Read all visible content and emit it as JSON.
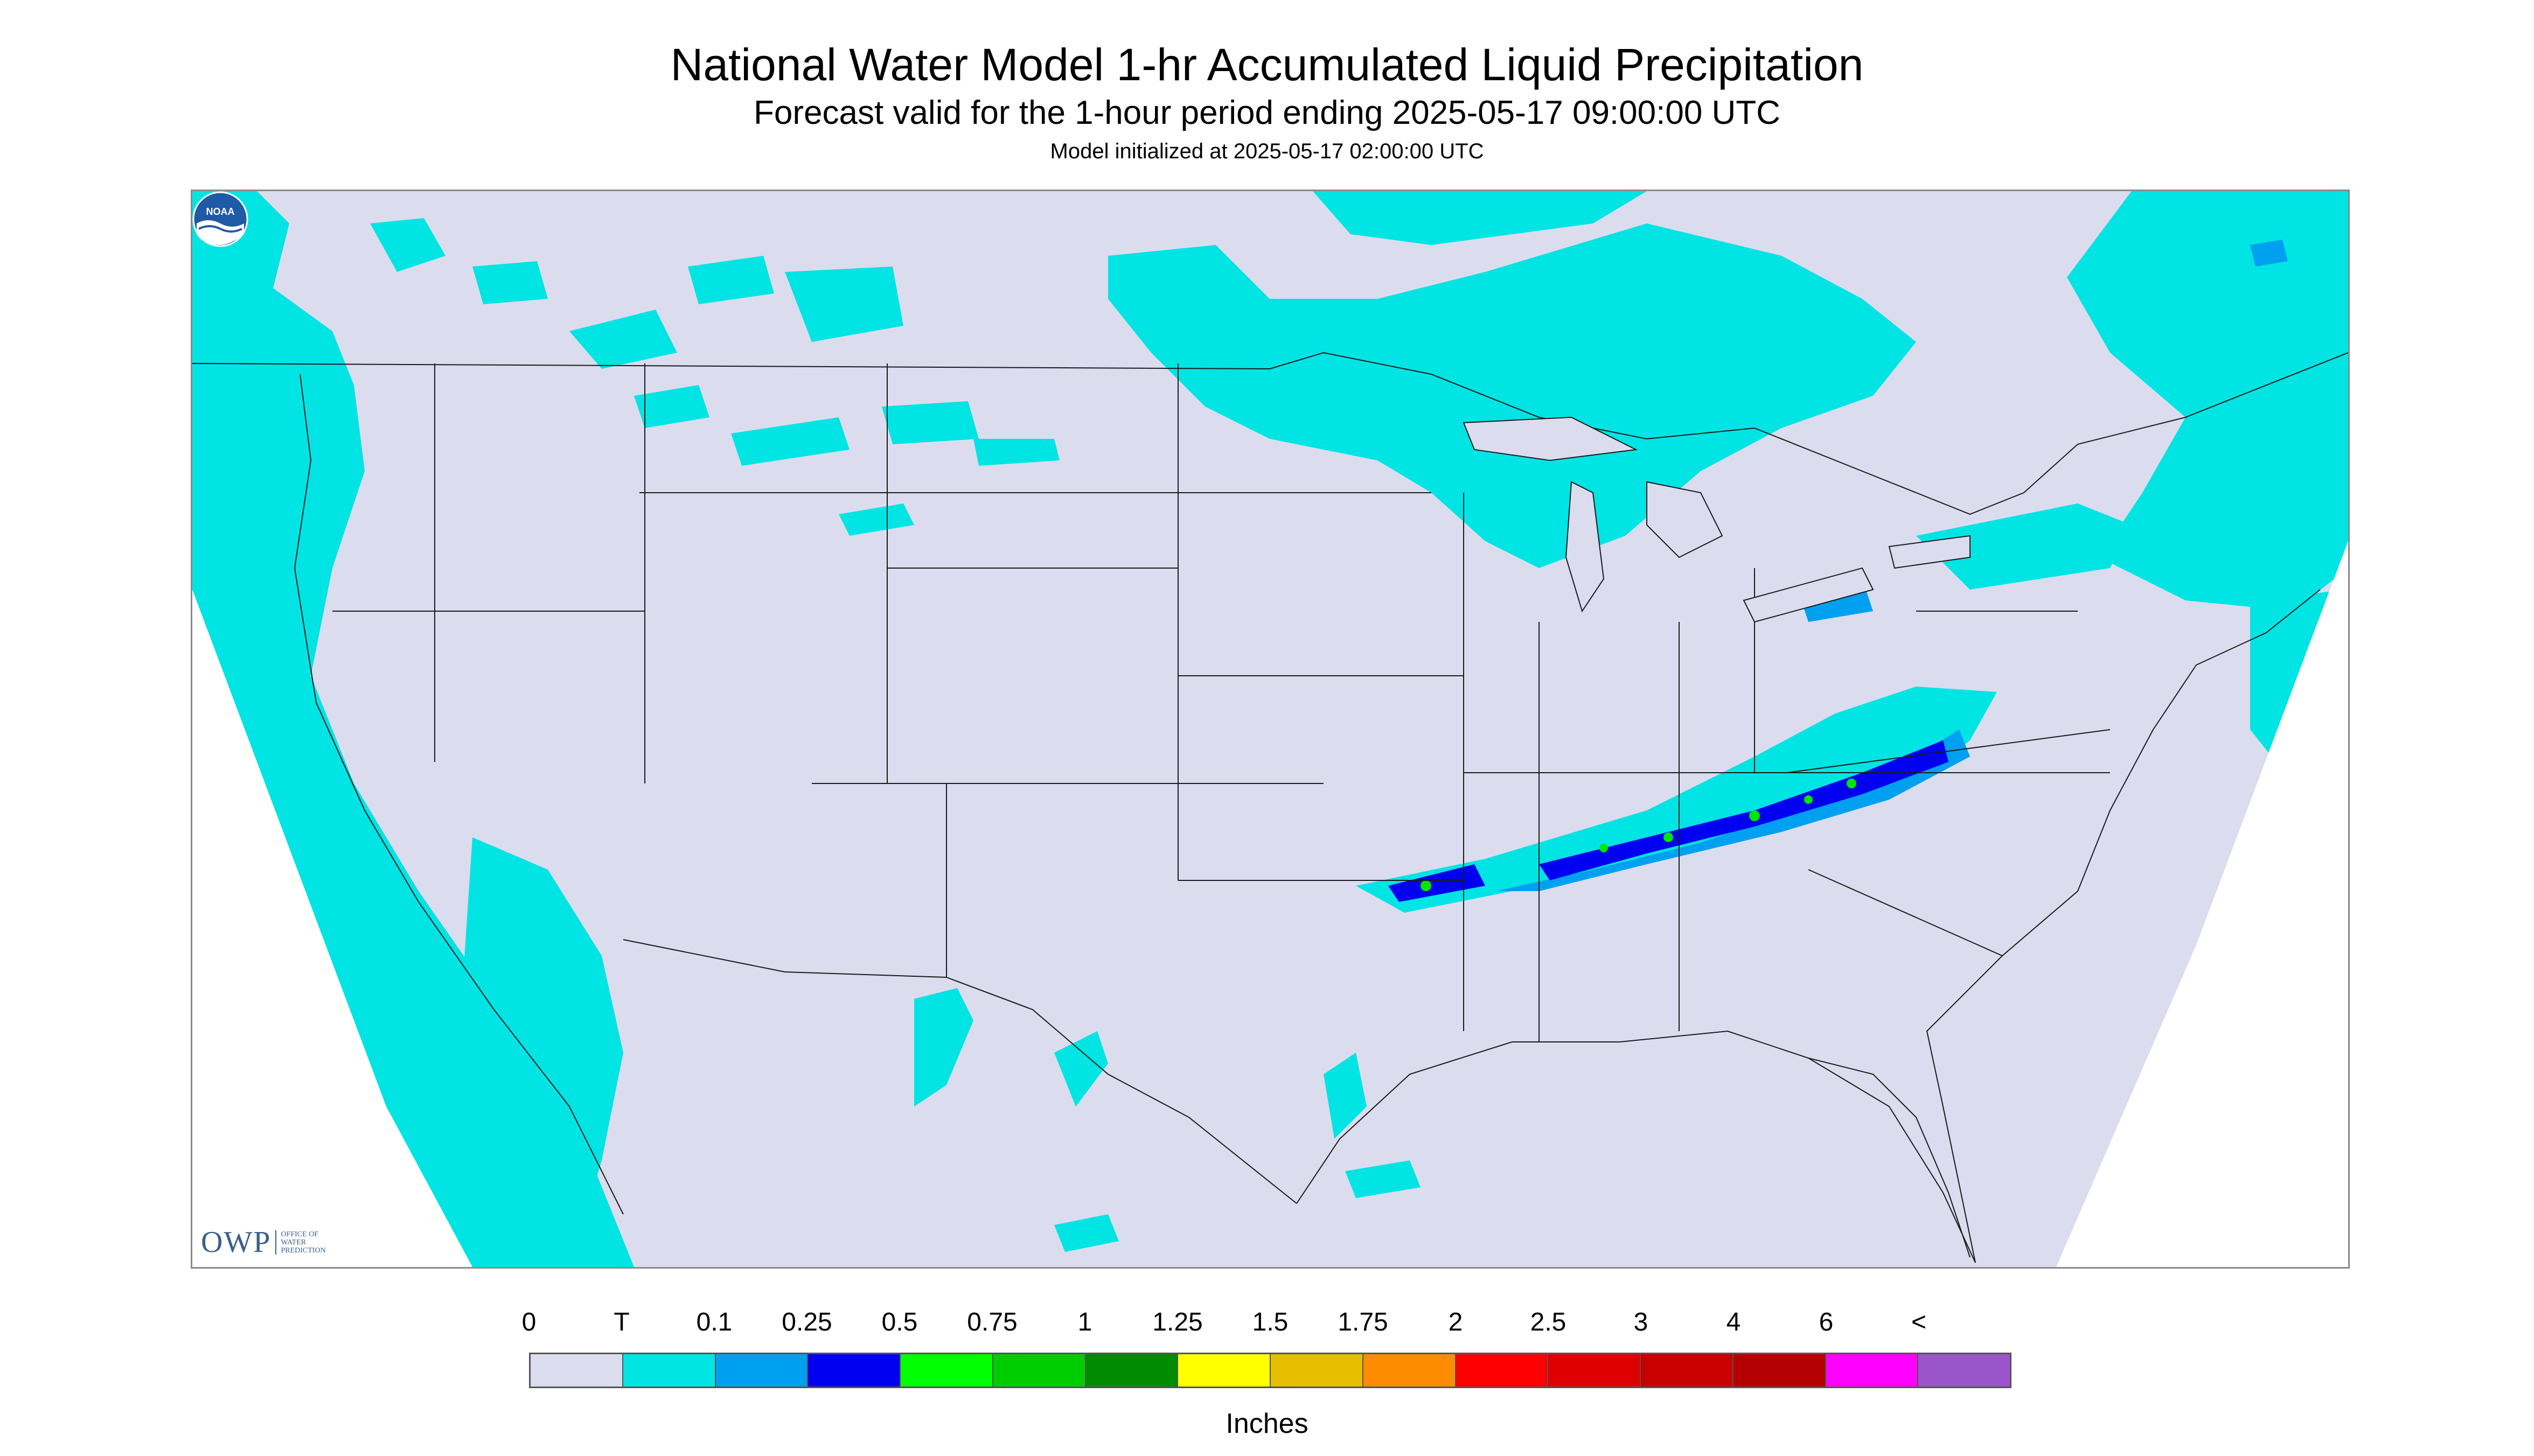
{
  "header": {
    "title": "National Water Model 1-hr Accumulated Liquid Precipitation",
    "subtitle": "Forecast valid for the 1-hour period ending 2025-05-17 09:00:00 UTC",
    "init": "Model initialized at 2025-05-17 02:00:00 UTC"
  },
  "map": {
    "background_color": "#dcdcef",
    "outside_domain_color": "#ffffff",
    "boundary_color": "#1a1a1a",
    "precip_colors": {
      "trace": "#00e4e4",
      "light": "#00a0f0",
      "moderate": "#0000f0",
      "heavy": "#00e600"
    }
  },
  "logos": {
    "owp": {
      "word": "OWP",
      "sub": "OFFICE OF WATER PREDICTION"
    },
    "noaa": {
      "word": "NOAA",
      "icon": "noaa-logo-icon"
    }
  },
  "legend": {
    "labels": [
      "0",
      "T",
      "0.1",
      "0.25",
      "0.5",
      "0.75",
      "1",
      "1.25",
      "1.5",
      "1.75",
      "2",
      "2.5",
      "3",
      "4",
      "6",
      "<"
    ],
    "colors": [
      "#dcdcef",
      "#00e4e4",
      "#00a0f0",
      "#0000f0",
      "#00ff00",
      "#00cd00",
      "#008b00",
      "#ffff00",
      "#e6be00",
      "#ff8c00",
      "#ff0000",
      "#de0000",
      "#c80000",
      "#b40000",
      "#ff00ff",
      "#9955c9"
    ],
    "units": "Inches"
  }
}
